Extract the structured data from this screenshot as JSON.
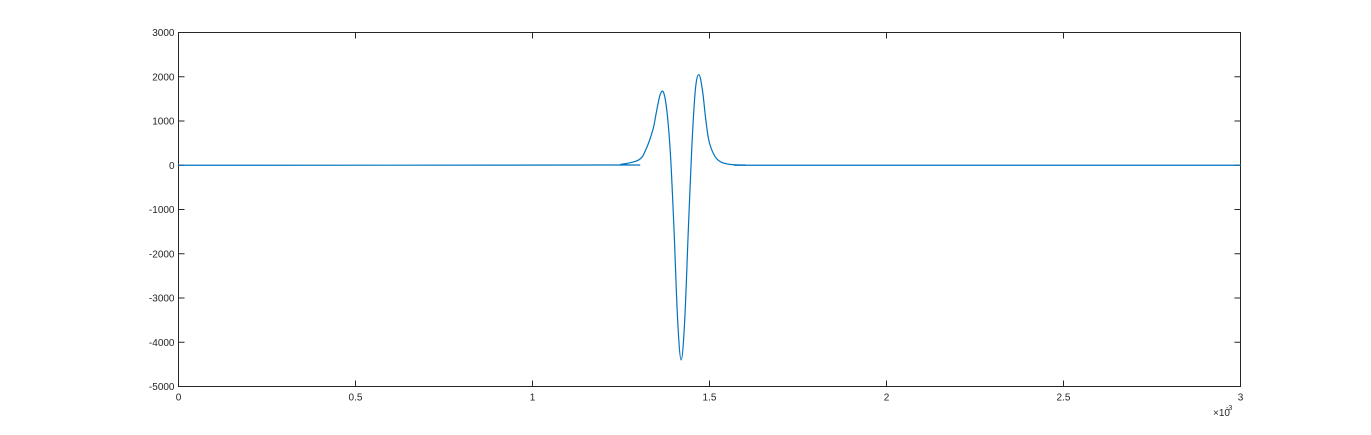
{
  "chart_data": {
    "type": "line",
    "title": "",
    "xlabel": "",
    "ylabel": "",
    "xlim": [
      0,
      0.003
    ],
    "ylim": [
      -5000,
      3000
    ],
    "grid": false,
    "legend": "none",
    "x_ticks": [
      0,
      0.0005,
      0.001,
      0.0015,
      0.002,
      0.0025,
      0.003
    ],
    "x_tick_labels": [
      "0",
      "0.5",
      "1",
      "1.5",
      "2",
      "2.5",
      "3"
    ],
    "x_exponent_base": "×10",
    "x_exponent_power": "-3",
    "y_ticks": [
      -5000,
      -4000,
      -3000,
      -2000,
      -1000,
      0,
      1000,
      2000,
      3000
    ],
    "y_tick_labels": [
      "-5000",
      "-4000",
      "-3000",
      "-2000",
      "-1000",
      "0",
      "1000",
      "2000",
      "3000"
    ],
    "series": [
      {
        "color": "#0072bd",
        "x": [
          0,
          0.0012,
          0.00125,
          0.0013,
          0.00132,
          0.00134,
          0.00135,
          0.00136,
          0.00137,
          0.00138,
          0.00139,
          0.0014,
          0.00141,
          0.00142,
          0.00143,
          0.00144,
          0.00145,
          0.00146,
          0.00147,
          0.00148,
          0.00149,
          0.0015,
          0.00152,
          0.00155,
          0.0016,
          0.0017,
          0.003
        ],
        "y": [
          0,
          5,
          20,
          120,
          350,
          800,
          1200,
          1580,
          1650,
          1200,
          200,
          -1500,
          -3500,
          -4400,
          -3500,
          -1500,
          400,
          1700,
          2050,
          1700,
          1000,
          500,
          150,
          30,
          5,
          0,
          0
        ]
      }
    ]
  }
}
